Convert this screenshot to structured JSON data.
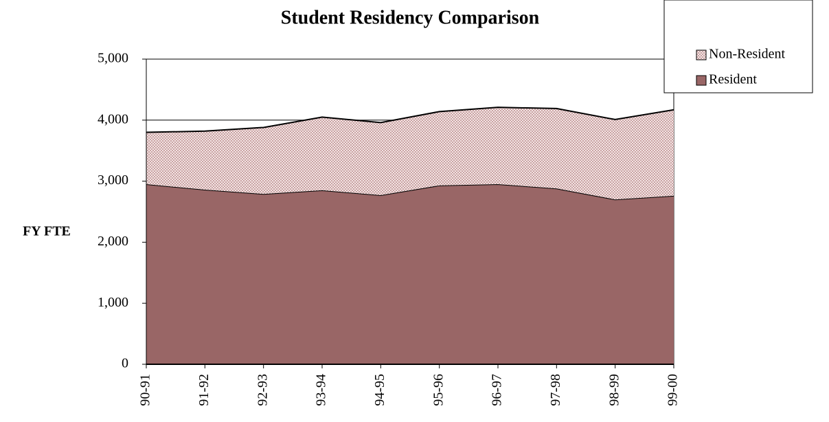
{
  "chart_data": {
    "type": "area",
    "stacked": true,
    "title": "Student Residency Comparison",
    "y_label": "FY FTE",
    "categories": [
      "90-91",
      "91-92",
      "92-93",
      "93-94",
      "94-95",
      "95-96",
      "96-97",
      "97-98",
      "98-99",
      "99-00"
    ],
    "series": [
      {
        "name": "Resident",
        "color": "#996666",
        "values": [
          2950,
          2860,
          2790,
          2850,
          2770,
          2930,
          2950,
          2880,
          2700,
          2760
        ]
      },
      {
        "name": "Non-Resident",
        "color": "#d9b3b3",
        "values": [
          850,
          960,
          1090,
          1200,
          1190,
          1210,
          1260,
          1310,
          1310,
          1410
        ]
      }
    ],
    "ylim": [
      0,
      5000
    ],
    "yticks": [
      0,
      {
        "value": 1000,
        "label": "1,000"
      },
      {
        "value": 2000,
        "label": "2,000"
      },
      {
        "value": 3000,
        "label": "3,000"
      },
      {
        "value": 4000,
        "label": "4,000"
      },
      {
        "value": 5000,
        "label": "5,000"
      }
    ],
    "grid": true,
    "legend": "top-right"
  }
}
